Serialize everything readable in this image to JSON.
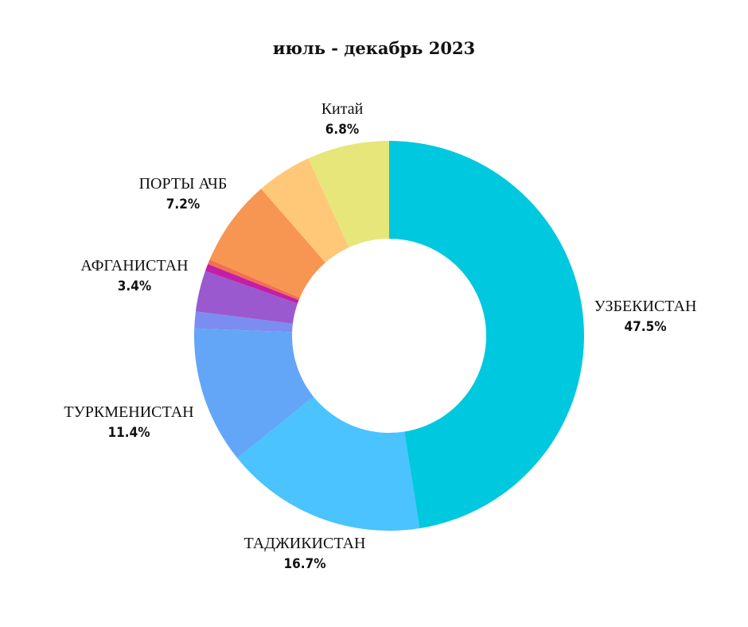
{
  "chart_data": {
    "type": "pie",
    "style": "donut",
    "title": "июль - декабрь 2023",
    "slices": [
      {
        "label": "УЗБЕКИСТАН",
        "value": 47.5,
        "value_label": "47.5%",
        "color": "#00C8DE"
      },
      {
        "label": "ТАДЖИКИСТАН",
        "value": 16.7,
        "value_label": "16.7%",
        "color": "#4AC3FF"
      },
      {
        "label": "ТУРКМЕНИСТАН",
        "value": 11.4,
        "value_label": "11.4%",
        "color": "#63A6F8"
      },
      {
        "label": "",
        "value": 1.4,
        "value_label": "",
        "color": "#7B8DF0"
      },
      {
        "label": "АФГАНИСТАН",
        "value": 3.4,
        "value_label": "3.4%",
        "color": "#9B59D0"
      },
      {
        "label": "",
        "value": 0.6,
        "value_label": "",
        "color": "#C21FA6"
      },
      {
        "label": "",
        "value": 0.4,
        "value_label": "",
        "color": "#F2704E"
      },
      {
        "label": "ПОРТЫ АЧБ",
        "value": 7.2,
        "value_label": "7.2%",
        "color": "#F79552"
      },
      {
        "label": "",
        "value": 4.6,
        "value_label": "",
        "color": "#FFC879"
      },
      {
        "label": "Китай",
        "value": 6.8,
        "value_label": "6.8%",
        "color": "#E7E67A"
      }
    ]
  }
}
